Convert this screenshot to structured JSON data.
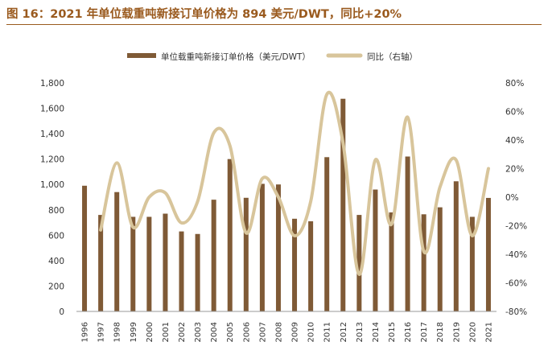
{
  "title": "图 16：2021 年单位载重吨新接订单价格为 894 美元/DWT，同比+20%",
  "colors": {
    "bar": "#7f5a36",
    "line": "#d8c59b",
    "title": "#9a5a1e"
  },
  "chart_data": {
    "type": "bar",
    "title": "图 16：2021 年单位载重吨新接订单价格为 894 美元/DWT，同比+20%",
    "categories": [
      "1996",
      "1997",
      "1998",
      "1999",
      "2000",
      "2001",
      "2002",
      "2003",
      "2004",
      "2005",
      "2006",
      "2007",
      "2008",
      "2009",
      "2010",
      "2011",
      "2012",
      "2013",
      "2014",
      "2015",
      "2016",
      "2017",
      "2018",
      "2019",
      "2020",
      "2021"
    ],
    "series": [
      {
        "name": "单位载重吨新接订单价格（美元/DWT）",
        "type": "bar",
        "axis": "left",
        "values": [
          990,
          760,
          940,
          745,
          745,
          770,
          630,
          610,
          880,
          1200,
          895,
          1005,
          1000,
          730,
          710,
          1215,
          1675,
          760,
          960,
          780,
          1220,
          765,
          820,
          1025,
          745,
          894
        ]
      },
      {
        "name": "同比（右轴）",
        "type": "line",
        "axis": "right",
        "unit": "%",
        "values": [
          null,
          -23,
          24,
          -21,
          0,
          3,
          -18,
          -3,
          45,
          36,
          -25,
          13,
          0,
          -27,
          -3,
          72,
          38,
          -54,
          26,
          -19,
          56,
          -38,
          7,
          26,
          -27,
          20
        ]
      }
    ],
    "y_left": {
      "min": 0,
      "max": 1800,
      "ticks": [
        "0",
        "200",
        "400",
        "600",
        "800",
        "1,000",
        "1,200",
        "1,400",
        "1,600",
        "1,800"
      ]
    },
    "y_right": {
      "min": -80,
      "max": 80,
      "ticks": [
        "-80%",
        "-60%",
        "-40%",
        "-20%",
        "0%",
        "20%",
        "40%",
        "60%",
        "80%"
      ]
    },
    "legend": {
      "position": "top",
      "items": [
        "单位载重吨新接订单价格（美元/DWT）",
        "同比（右轴）"
      ]
    },
    "grid": false
  }
}
